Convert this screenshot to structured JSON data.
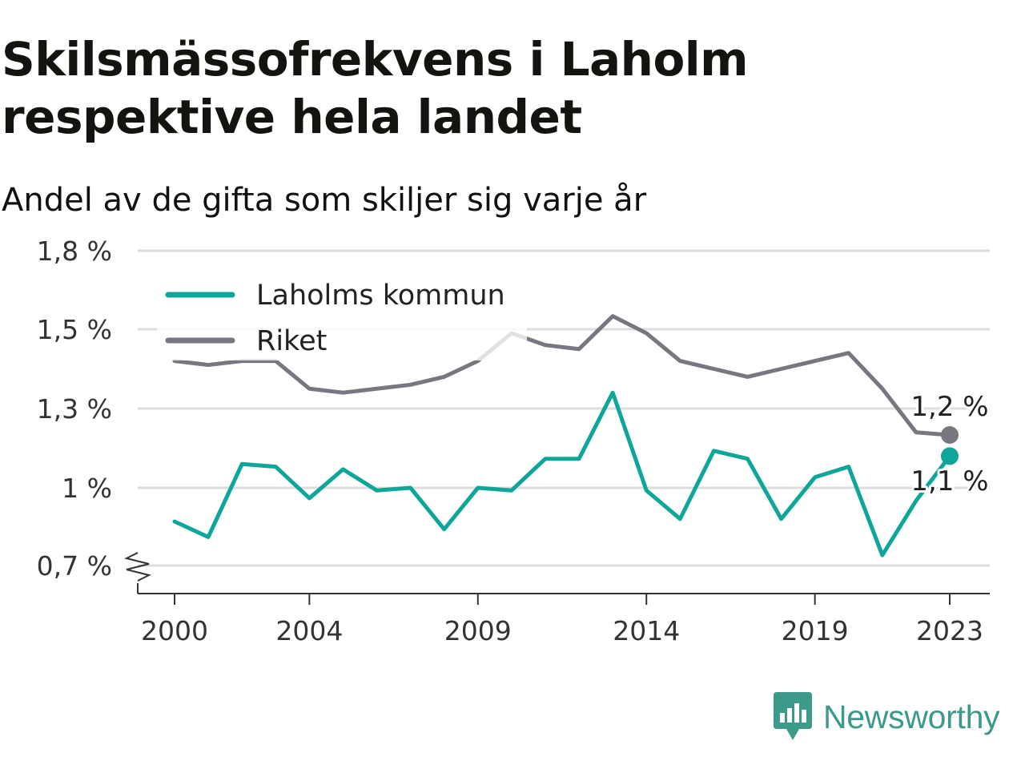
{
  "title": "Skilsmässofrekvens i Laholm respektive hela landet",
  "subtitle": "Andel av de gifta som skiljer sig varje år",
  "brand": {
    "name": "Newsworthy",
    "icon": "newsworthy-logo-icon",
    "color": "#3d9a8b"
  },
  "chart_data": {
    "type": "line",
    "x": [
      2000,
      2001,
      2002,
      2003,
      2004,
      2005,
      2006,
      2007,
      2008,
      2009,
      2010,
      2011,
      2012,
      2013,
      2014,
      2015,
      2016,
      2017,
      2018,
      2019,
      2020,
      2021,
      2022,
      2023
    ],
    "x_ticks": [
      2000,
      2004,
      2009,
      2014,
      2019,
      2023
    ],
    "y_ticks": [
      {
        "value": 0.7,
        "label": "0,7 %"
      },
      {
        "value": 1.0,
        "label": "1 %"
      },
      {
        "value": 1.3,
        "label": "1,3 %"
      },
      {
        "value": 1.5,
        "label": "1,5 %"
      },
      {
        "value": 1.8,
        "label": "1,8 %"
      }
    ],
    "ylim": [
      0.7,
      1.8
    ],
    "y_axis_break": true,
    "grid": true,
    "legend_position": "top-left",
    "series": [
      {
        "name": "Laholms kommun",
        "color": "#0fa69a",
        "values": [
          0.87,
          0.81,
          1.09,
          1.08,
          0.96,
          1.07,
          0.99,
          1.0,
          0.84,
          1.0,
          0.99,
          1.11,
          1.11,
          1.34,
          0.99,
          0.88,
          1.14,
          1.11,
          0.88,
          1.04,
          1.08,
          0.74,
          0.95,
          1.12
        ],
        "end_label": "1,1 %"
      },
      {
        "name": "Riket",
        "color": "#77777f",
        "values": [
          1.42,
          1.41,
          1.42,
          1.42,
          1.35,
          1.34,
          1.35,
          1.36,
          1.38,
          1.42,
          1.49,
          1.46,
          1.45,
          1.55,
          1.49,
          1.42,
          1.4,
          1.38,
          1.4,
          1.42,
          1.44,
          1.35,
          1.21,
          1.2
        ],
        "end_label": "1,2 %"
      }
    ]
  }
}
